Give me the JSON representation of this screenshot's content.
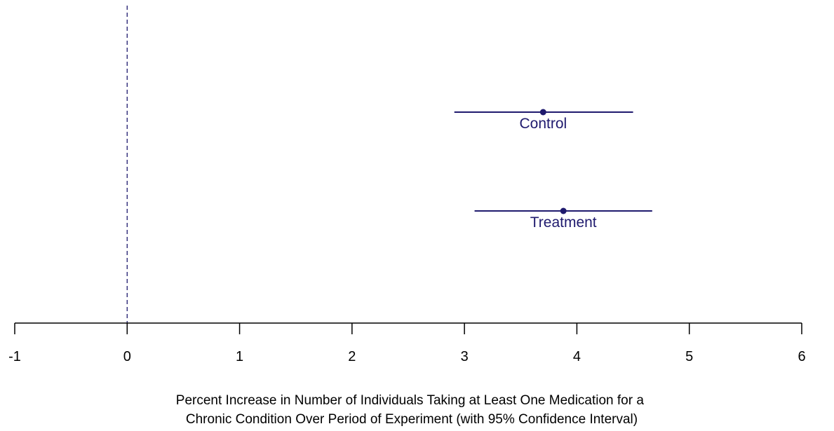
{
  "chart_data": {
    "type": "scatter",
    "title": "",
    "xlabel_lines": [
      "Percent Increase in Number of Individuals Taking at Least One Medication for a",
      "Chronic Condition Over Period of Experiment (with 95% Confidence Interval)"
    ],
    "ylabel": "",
    "xlim": [
      -1,
      6
    ],
    "x_ticks": [
      -1,
      0,
      1,
      2,
      3,
      4,
      5,
      6
    ],
    "reference_line": {
      "x": 0,
      "style": "dashed"
    },
    "grid": false,
    "legend": "none",
    "series": [
      {
        "name": "Control",
        "estimate": 3.7,
        "ci_low": 2.91,
        "ci_high": 4.5
      },
      {
        "name": "Treatment",
        "estimate": 3.88,
        "ci_low": 3.09,
        "ci_high": 4.67
      }
    ],
    "colors": {
      "series": "#1f1a6e",
      "axis": "#000000"
    }
  }
}
